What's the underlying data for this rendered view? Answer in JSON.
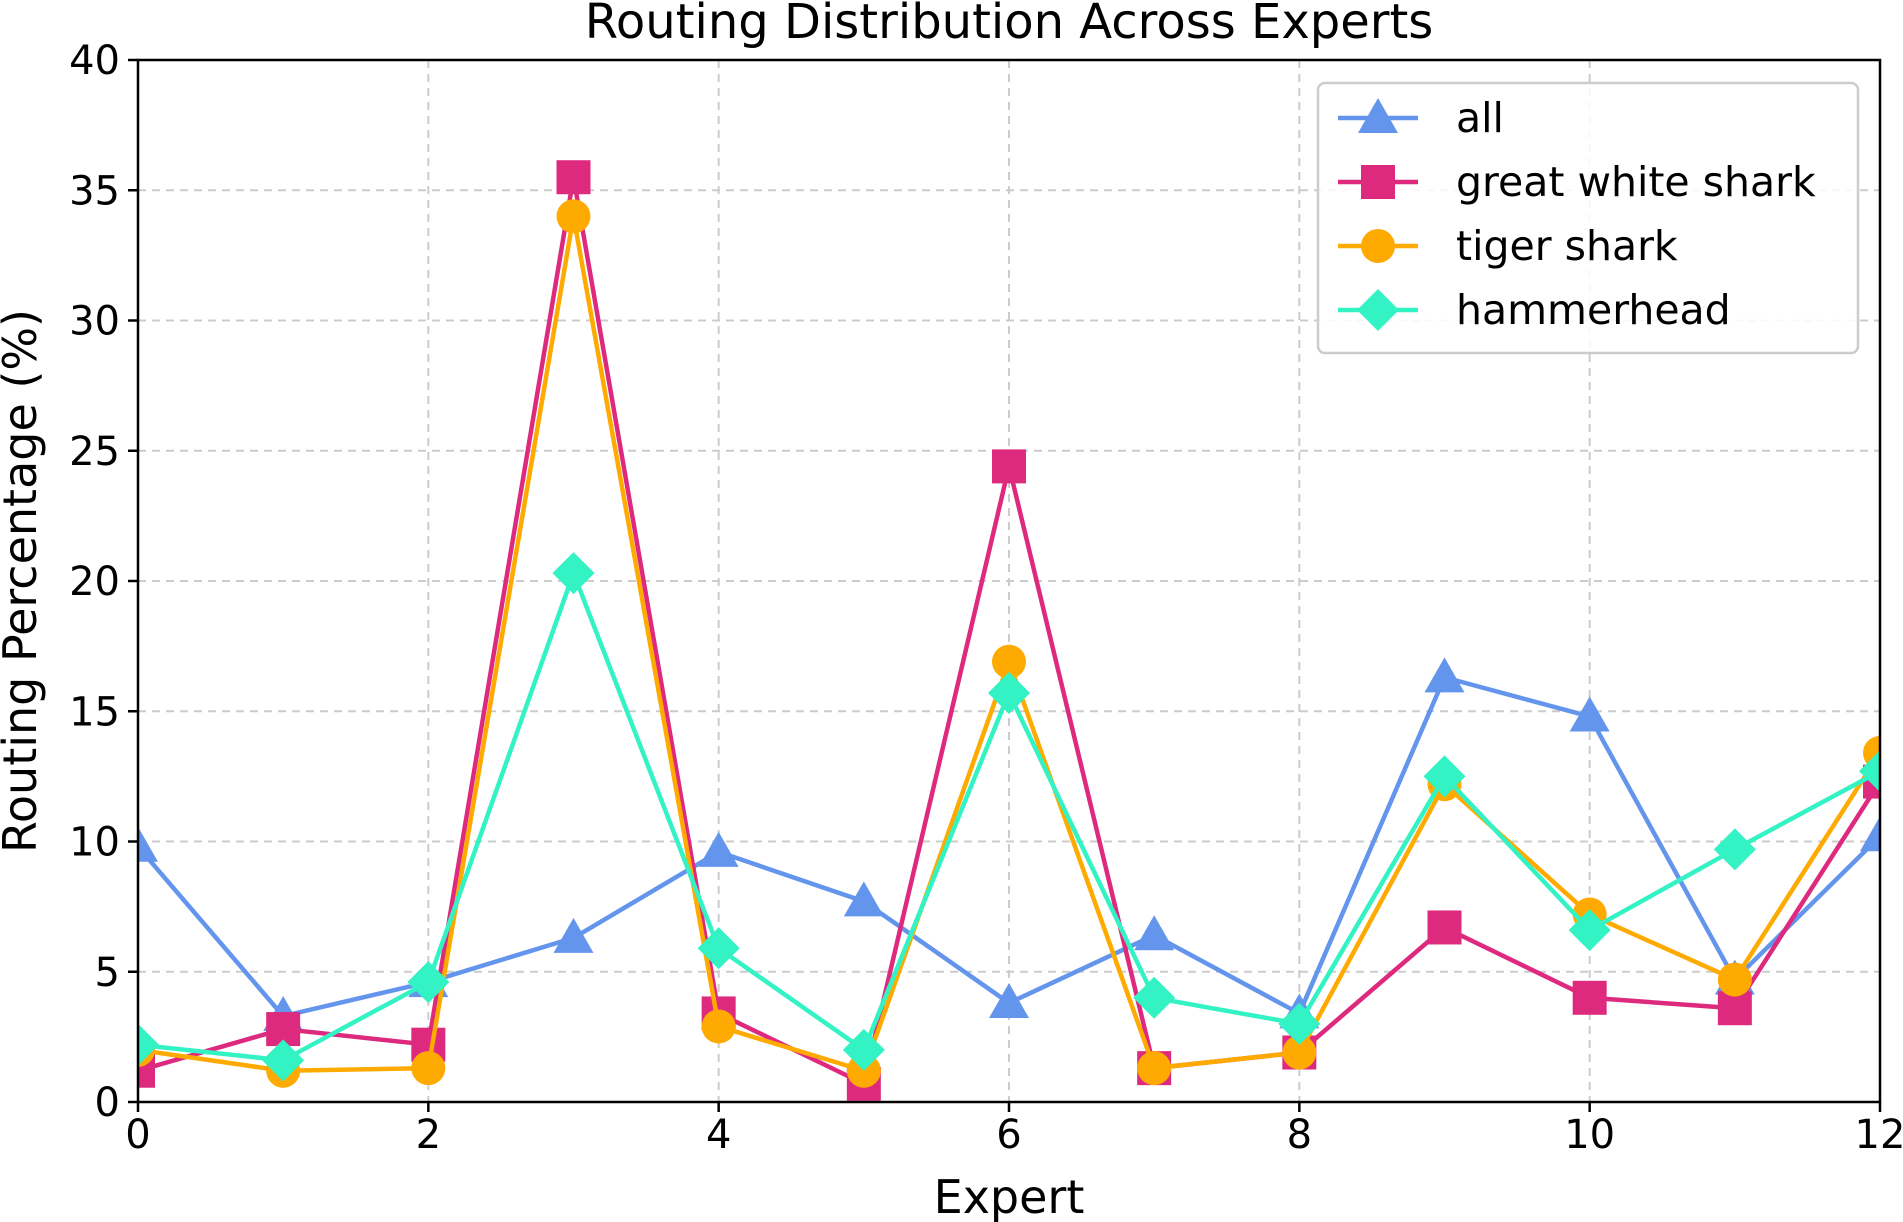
{
  "chart_data": {
    "type": "line",
    "title": "Routing Distribution Across Experts",
    "xlabel": "Expert",
    "ylabel": "Routing Percentage (%)",
    "xlim": [
      0,
      12
    ],
    "ylim": [
      0,
      40
    ],
    "xticks": [
      0,
      2,
      4,
      6,
      8,
      10,
      12
    ],
    "yticks": [
      0,
      5,
      10,
      15,
      20,
      25,
      30,
      35,
      40
    ],
    "grid": true,
    "legend_position": "top-right",
    "x": [
      0,
      1,
      2,
      3,
      4,
      5,
      6,
      7,
      8,
      9,
      10,
      11,
      12
    ],
    "series": [
      {
        "name": "all",
        "color": "#6495ED",
        "marker": "triangle",
        "values": [
          9.8,
          3.3,
          4.6,
          6.3,
          9.6,
          7.7,
          3.8,
          6.4,
          3.4,
          16.3,
          14.8,
          4.7,
          10.2
        ]
      },
      {
        "name": "great white shark",
        "color": "#DE2A7E",
        "marker": "square",
        "values": [
          1.2,
          2.8,
          2.2,
          35.5,
          3.4,
          0.7,
          24.4,
          1.3,
          1.9,
          6.7,
          4.0,
          3.6,
          12.3
        ]
      },
      {
        "name": "tiger shark",
        "color": "#FFAA00",
        "marker": "circle",
        "values": [
          2.0,
          1.2,
          1.3,
          34.0,
          2.9,
          1.2,
          16.9,
          1.3,
          1.9,
          12.2,
          7.2,
          4.7,
          13.4
        ]
      },
      {
        "name": "hammerhead",
        "color": "#33F2C4",
        "marker": "diamond",
        "values": [
          2.2,
          1.6,
          4.6,
          20.3,
          5.9,
          2.0,
          15.7,
          4.0,
          3.0,
          12.5,
          6.6,
          9.7,
          12.7
        ]
      }
    ]
  }
}
